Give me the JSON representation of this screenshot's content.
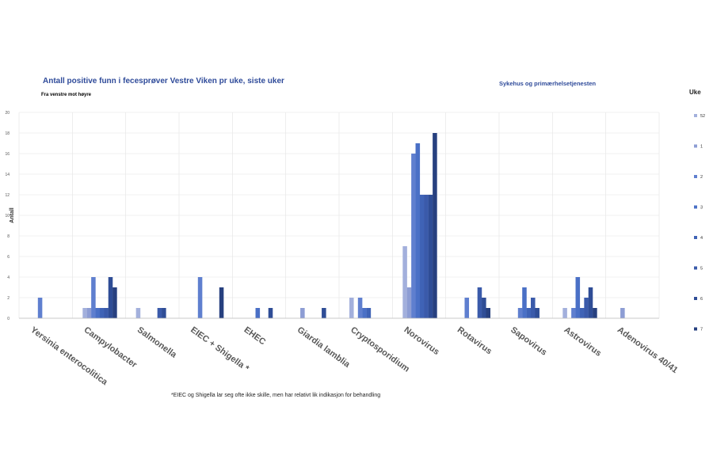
{
  "chart_data": {
    "type": "bar",
    "title": "Antall positive funn i fecesprøver Vestre Viken pr uke, siste uker",
    "subtitle": "Fra venstre mot høyre",
    "right_title": "Sykehus og primærhelsetjenesten",
    "ylabel": "Antall",
    "ylim": [
      0,
      20
    ],
    "yticks": [
      0,
      2,
      4,
      6,
      8,
      10,
      12,
      14,
      16,
      18,
      20
    ],
    "legend_title": "Uke",
    "legend_position": "right",
    "grid": true,
    "footnote": "*EIEC og Shigella lar seg ofte ikke skille, men har relativt lik indikasjon for behandling",
    "categories": [
      "Yersinia enterocolitica",
      "Campylobacter",
      "Salmonella",
      "EIEC + Shigella *",
      "EHEC",
      "Giardia lamblia",
      "Cryptosporidium",
      "Norovirus",
      "Rotavirus",
      "Sapovirus",
      "Astrovirus",
      "Adenovirus 40/41"
    ],
    "series": [
      {
        "name": "52",
        "color": "#a3b0dc",
        "values": [
          0,
          1,
          1,
          0,
          0,
          0,
          2,
          7,
          0,
          0,
          1,
          0
        ]
      },
      {
        "name": "1",
        "color": "#8d9dd4",
        "values": [
          0,
          1,
          0,
          0,
          0,
          1,
          0,
          3,
          0,
          0,
          0,
          1
        ]
      },
      {
        "name": "2",
        "color": "#5f7fcf",
        "values": [
          2,
          4,
          0,
          4,
          0,
          0,
          2,
          16,
          2,
          1,
          1,
          0
        ]
      },
      {
        "name": "3",
        "color": "#4a70c6",
        "values": [
          0,
          1,
          0,
          0,
          1,
          0,
          1,
          17,
          0,
          3,
          4,
          0
        ]
      },
      {
        "name": "4",
        "color": "#3f63b6",
        "values": [
          0,
          1,
          0,
          0,
          0,
          0,
          1,
          12,
          0,
          1,
          1,
          0
        ]
      },
      {
        "name": "5",
        "color": "#3a5aaa",
        "values": [
          0,
          1,
          1,
          0,
          0,
          0,
          0,
          12,
          3,
          2,
          2,
          0
        ]
      },
      {
        "name": "6",
        "color": "#2f4d96",
        "values": [
          0,
          4,
          1,
          0,
          1,
          1,
          0,
          12,
          2,
          1,
          3,
          0
        ]
      },
      {
        "name": "7",
        "color": "#27407f",
        "values": [
          0,
          3,
          0,
          3,
          0,
          0,
          0,
          18,
          1,
          0,
          1,
          0
        ]
      }
    ]
  }
}
